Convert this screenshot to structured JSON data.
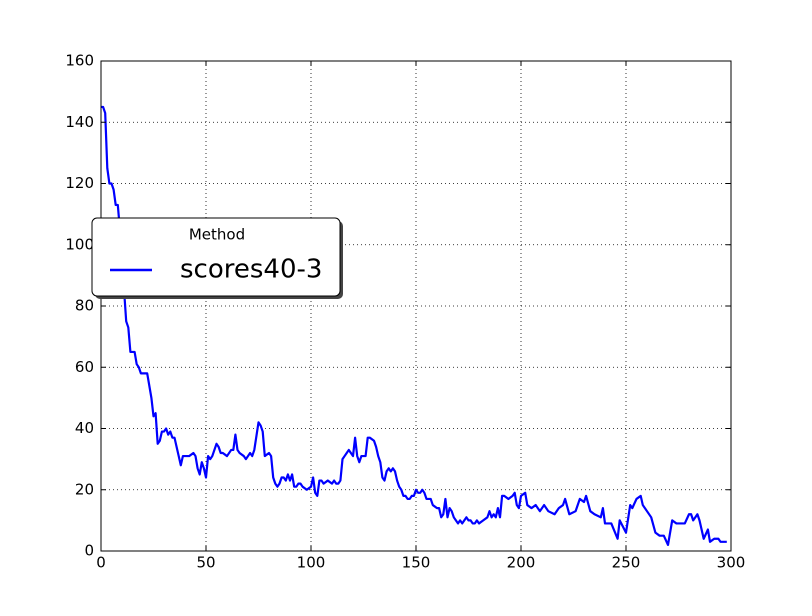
{
  "chart_data": {
    "type": "line",
    "x": [
      0,
      1,
      2,
      3,
      4,
      5,
      6,
      7,
      8,
      9,
      10,
      11,
      12,
      13,
      14,
      15,
      16,
      17,
      18,
      19,
      20,
      22,
      24,
      25,
      26,
      27,
      28,
      29,
      30,
      31,
      32,
      33,
      34,
      35,
      36,
      37,
      38,
      39,
      40,
      42,
      44,
      45,
      46,
      47,
      48,
      49,
      50,
      51,
      52,
      53,
      54,
      55,
      56,
      57,
      58,
      60,
      62,
      63,
      64,
      65,
      66,
      68,
      69,
      70,
      71,
      72,
      73,
      75,
      76,
      77,
      78,
      80,
      81,
      82,
      83,
      84,
      85,
      86,
      87,
      88,
      89,
      90,
      91,
      92,
      93,
      94,
      95,
      96,
      98,
      100,
      101,
      102,
      103,
      104,
      105,
      106,
      108,
      110,
      111,
      112,
      113,
      114,
      115,
      116,
      117,
      118,
      119,
      120,
      121,
      122,
      123,
      124,
      126,
      127,
      128,
      130,
      131,
      132,
      133,
      134,
      135,
      136,
      137,
      138,
      139,
      140,
      141,
      142,
      143,
      144,
      145,
      146,
      147,
      148,
      149,
      150,
      151,
      152,
      153,
      154,
      155,
      156,
      157,
      158,
      160,
      161,
      162,
      163,
      164,
      165,
      166,
      167,
      168,
      169,
      170,
      171,
      172,
      173,
      174,
      175,
      176,
      177,
      178,
      179,
      180,
      182,
      184,
      185,
      186,
      187,
      188,
      189,
      190,
      191,
      192,
      194,
      196,
      197,
      198,
      199,
      200,
      202,
      203,
      205,
      207,
      209,
      211,
      213,
      216,
      218,
      220,
      221,
      223,
      226,
      228,
      230,
      231,
      233,
      235,
      238,
      239,
      240,
      243,
      246,
      247,
      250,
      252,
      253,
      255,
      257,
      258,
      260,
      262,
      264,
      266,
      268,
      270,
      272,
      274,
      278,
      280,
      281,
      282,
      284,
      285,
      287,
      289,
      290,
      292,
      294,
      295,
      298
    ],
    "series": [
      {
        "name": "scores40-3",
        "color": "#0000ff",
        "values": [
          145,
          145,
          143,
          125,
          120,
          120,
          118,
          113,
          113,
          105,
          95,
          85,
          75,
          73,
          65,
          65,
          65,
          61,
          60,
          58,
          58,
          58,
          50,
          44,
          45,
          35,
          36,
          39,
          39,
          40,
          38,
          39,
          37,
          37,
          34,
          31,
          28,
          31,
          31,
          31,
          32,
          31,
          27,
          25,
          29,
          27,
          24,
          31,
          30,
          31,
          33,
          35,
          34,
          32,
          32,
          31,
          33,
          33,
          38,
          33,
          32,
          31,
          30,
          31,
          32,
          31,
          33,
          42,
          41,
          39,
          31,
          32,
          31,
          24,
          22,
          21,
          22,
          24,
          24,
          23,
          25,
          23,
          25,
          21,
          21,
          22,
          22,
          21,
          20,
          21,
          24,
          19,
          18,
          23,
          23,
          22,
          23,
          22,
          23,
          22,
          22,
          23,
          30,
          31,
          32,
          33,
          32,
          31,
          37,
          31,
          29,
          31,
          31,
          37,
          37,
          36,
          34,
          31,
          29,
          24,
          23,
          26,
          27,
          26,
          27,
          26,
          23,
          21,
          20,
          18,
          18,
          17,
          17,
          18,
          18,
          20,
          19,
          19,
          20,
          19,
          17,
          17,
          17,
          15,
          14,
          14,
          11,
          12,
          17,
          11,
          14,
          13,
          11,
          10,
          9,
          10,
          9,
          10,
          11,
          10,
          10,
          9,
          9,
          10,
          9,
          10,
          11,
          13,
          11,
          12,
          11,
          14,
          11,
          18,
          18,
          17,
          18,
          19,
          15,
          14,
          18,
          19,
          15,
          14,
          15,
          13,
          15,
          13,
          12,
          14,
          15,
          17,
          12,
          13,
          17,
          16,
          18,
          13,
          12,
          11,
          14,
          9,
          9,
          4,
          10,
          6,
          15,
          14,
          17,
          18,
          15,
          13,
          11,
          6,
          5,
          5,
          2,
          10,
          9,
          9,
          12,
          12,
          10,
          12,
          10,
          4,
          7,
          3,
          4,
          4,
          3,
          3
        ]
      }
    ],
    "xlim": [
      0,
      300
    ],
    "ylim": [
      0,
      160
    ],
    "xticks": [
      0,
      50,
      100,
      150,
      200,
      250,
      300
    ],
    "yticks": [
      0,
      20,
      40,
      60,
      80,
      100,
      120,
      140,
      160
    ],
    "grid": true,
    "legend_title": "Method",
    "legend": "center left"
  }
}
